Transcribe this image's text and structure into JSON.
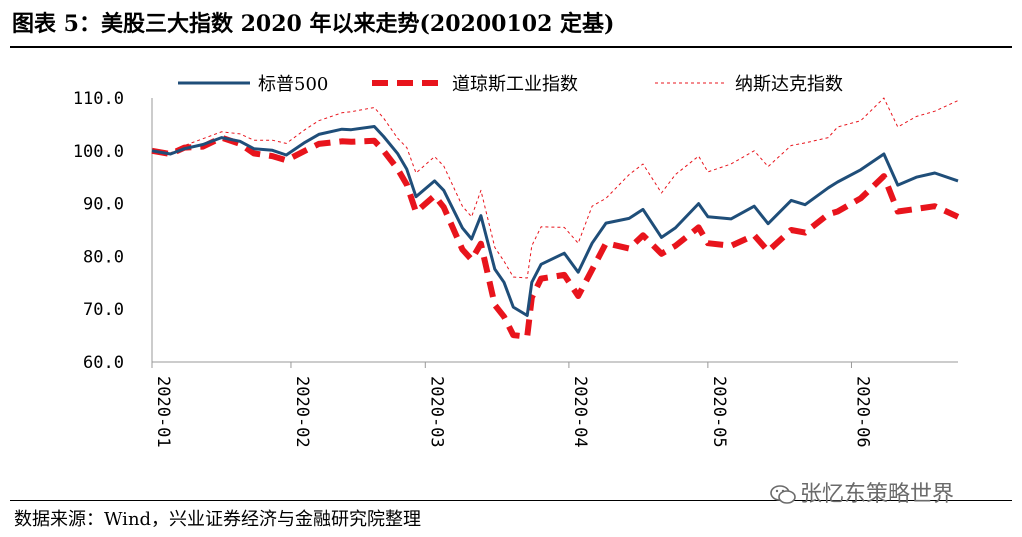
{
  "title": "图表 5：美股三大指数 2020 年以来走势(20200102 定基)",
  "source": "数据来源：Wind，兴业证券经济与金融研究院整理",
  "watermark": "张忆东策略世界",
  "colors": {
    "sp500": "#1f4e79",
    "dow": "#e8141c",
    "nasdaq": "#e8141c",
    "axis": "#999999"
  },
  "chart_data": {
    "type": "line",
    "ylim": [
      60,
      110
    ],
    "yticks": [
      "110.0",
      "100.0",
      "90.0",
      "80.0",
      "70.0",
      "60.0"
    ],
    "ytick_values": [
      110,
      100,
      90,
      80,
      70,
      60
    ],
    "xlim": [
      "2020-01-02",
      "2020-06-24"
    ],
    "xticks": [
      "2020-01",
      "2020-02",
      "2020-03",
      "2020-04",
      "2020-05",
      "2020-06"
    ],
    "xtick_dates": [
      "2020-01-01",
      "2020-02-01",
      "2020-03-01",
      "2020-04-01",
      "2020-05-01",
      "2020-06-01"
    ],
    "legend": "top",
    "x": [
      "2020-01-02",
      "2020-01-06",
      "2020-01-09",
      "2020-01-13",
      "2020-01-17",
      "2020-01-21",
      "2020-01-24",
      "2020-01-28",
      "2020-01-31",
      "2020-02-04",
      "2020-02-07",
      "2020-02-12",
      "2020-02-14",
      "2020-02-19",
      "2020-02-21",
      "2020-02-24",
      "2020-02-26",
      "2020-02-28",
      "2020-03-03",
      "2020-03-05",
      "2020-03-09",
      "2020-03-11",
      "2020-03-13",
      "2020-03-16",
      "2020-03-18",
      "2020-03-20",
      "2020-03-23",
      "2020-03-24",
      "2020-03-26",
      "2020-03-31",
      "2020-04-03",
      "2020-04-06",
      "2020-04-09",
      "2020-04-14",
      "2020-04-17",
      "2020-04-21",
      "2020-04-24",
      "2020-04-29",
      "2020-05-01",
      "2020-05-06",
      "2020-05-11",
      "2020-05-14",
      "2020-05-19",
      "2020-05-22",
      "2020-05-27",
      "2020-05-29",
      "2020-06-03",
      "2020-06-08",
      "2020-06-11",
      "2020-06-15",
      "2020-06-19",
      "2020-06-24"
    ],
    "series": [
      {
        "name": "标普500",
        "values": [
          100.0,
          99.4,
          100.4,
          101.2,
          102.5,
          101.8,
          100.4,
          100.1,
          99.2,
          101.6,
          103.1,
          104.1,
          104.0,
          104.6,
          102.7,
          99.5,
          96.5,
          91.3,
          94.3,
          92.5,
          85.4,
          83.3,
          87.7,
          77.6,
          75.1,
          70.4,
          68.8,
          75.1,
          78.5,
          80.6,
          77.0,
          82.5,
          86.3,
          87.2,
          88.9,
          83.6,
          85.4,
          90.0,
          87.5,
          87.1,
          89.5,
          86.2,
          90.6,
          89.8,
          93.0,
          94.1,
          96.4,
          99.4,
          93.5,
          95.0,
          95.8,
          94.3
        ]
      },
      {
        "name": "道琼斯工业指数",
        "values": [
          100.0,
          99.4,
          100.6,
          100.8,
          102.5,
          101.3,
          99.5,
          99.0,
          98.2,
          100.0,
          101.3,
          101.8,
          101.7,
          101.9,
          100.0,
          96.6,
          93.6,
          88.4,
          91.5,
          89.3,
          81.3,
          79.4,
          82.4,
          70.8,
          68.6,
          65.1,
          64.8,
          72.2,
          75.8,
          76.5,
          72.5,
          77.5,
          82.5,
          81.5,
          84.0,
          80.5,
          82.0,
          85.5,
          82.5,
          82.0,
          84.0,
          81.0,
          85.0,
          84.5,
          88.0,
          88.5,
          91.0,
          95.2,
          88.5,
          89.0,
          89.5,
          87.5
        ]
      },
      {
        "name": "纳斯达克指数",
        "values": [
          100.0,
          99.6,
          101.0,
          102.3,
          103.6,
          103.2,
          102.0,
          102.0,
          101.4,
          104.0,
          105.7,
          107.2,
          107.4,
          108.2,
          106.2,
          102.4,
          100.6,
          95.8,
          98.9,
          97.1,
          89.5,
          87.5,
          92.5,
          81.7,
          79.1,
          76.1,
          75.9,
          82.0,
          85.6,
          85.5,
          82.5,
          89.5,
          91.0,
          95.5,
          97.5,
          92.0,
          95.5,
          99.0,
          96.0,
          97.5,
          100.0,
          97.0,
          101.0,
          101.5,
          102.5,
          104.5,
          105.7,
          110.0,
          104.5,
          106.5,
          107.5,
          109.5
        ]
      }
    ]
  }
}
